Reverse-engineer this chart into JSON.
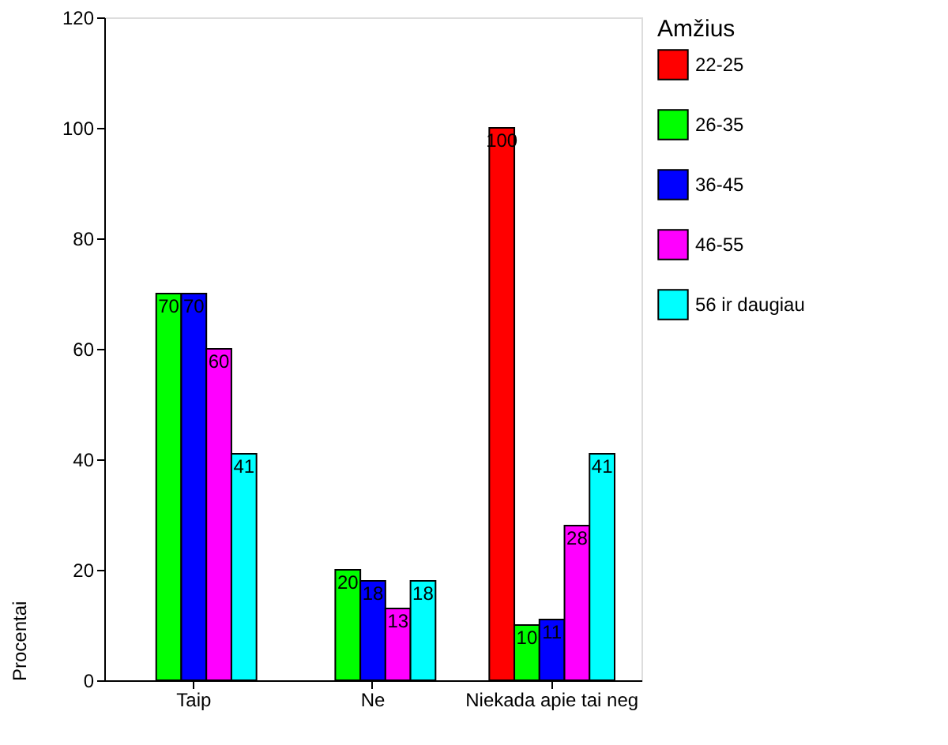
{
  "chart_data": {
    "type": "bar",
    "categories": [
      "Taip",
      "Ne",
      "Niekada apie tai neg"
    ],
    "series": [
      {
        "name": "22-25",
        "color": "#ff0000",
        "values": [
          null,
          null,
          100
        ]
      },
      {
        "name": "26-35",
        "color": "#00ff00",
        "values": [
          70,
          20,
          10
        ]
      },
      {
        "name": "36-45",
        "color": "#0000ff",
        "values": [
          70,
          18,
          11
        ]
      },
      {
        "name": "46-55",
        "color": "#ff00ff",
        "values": [
          60,
          13,
          28
        ]
      },
      {
        "name": "56 ir daugiau",
        "color": "#00ffff",
        "values": [
          41,
          18,
          41
        ]
      }
    ],
    "ylabel": "Procentai",
    "legend_title": "Amžius",
    "legend": "right",
    "ylim": [
      0,
      120
    ],
    "yticks": [
      0,
      20,
      40,
      60,
      80,
      100,
      120
    ],
    "data_labels": true,
    "grid": false
  }
}
